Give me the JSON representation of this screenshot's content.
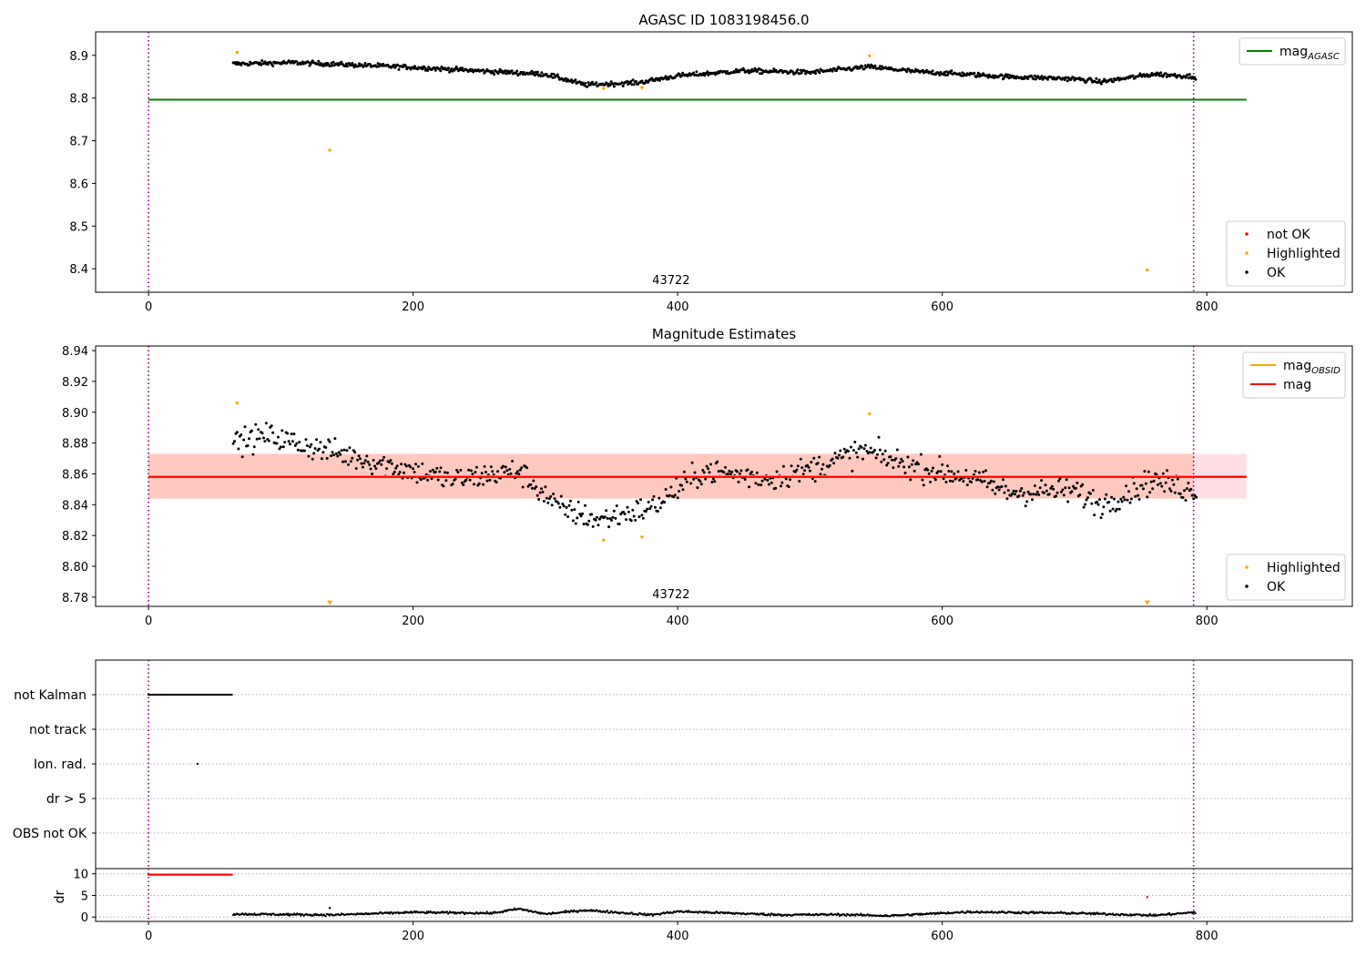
{
  "chart_data": [
    {
      "type": "scatter",
      "title": "AGASC ID 1083198456.0",
      "xlabel": "",
      "ylabel": "",
      "xlim": [
        -40,
        910
      ],
      "ylim": [
        8.345,
        8.955
      ],
      "xticks": [
        0,
        200,
        400,
        600,
        800
      ],
      "yticks": [
        8.4,
        8.5,
        8.6,
        8.7,
        8.8,
        8.9
      ],
      "ytick_decimals": 1,
      "vlines": [
        0,
        790
      ],
      "vline_color": "#800080",
      "annotation": {
        "text": "43722",
        "x": 395
      },
      "hlines": [
        {
          "name": "magAGASC",
          "y": 8.796,
          "x0": 0,
          "x1": 830,
          "color": "#008000"
        }
      ],
      "series": [
        {
          "name": "OK",
          "color": "#000000",
          "trend": "top_ok",
          "x_range": [
            64,
            792
          ]
        },
        {
          "name": "Highlighted",
          "color": "#ffa500",
          "points": [
            [
              67,
              8.907
            ],
            [
              137,
              8.678
            ],
            [
              344,
              8.823
            ],
            [
              373,
              8.825
            ],
            [
              545,
              8.899
            ],
            [
              755,
              8.397
            ]
          ]
        }
      ],
      "legends": [
        {
          "position": "upper-right",
          "items": [
            {
              "label": "mag",
              "sub": "AGASC",
              "kind": "line",
              "color": "#008000"
            }
          ]
        },
        {
          "position": "lower-right",
          "items": [
            {
              "label": "not OK",
              "kind": "dot",
              "color": "#ff0000"
            },
            {
              "label": "Highlighted",
              "kind": "dot",
              "color": "#ffa500"
            },
            {
              "label": "OK",
              "kind": "dot",
              "color": "#000000"
            }
          ]
        }
      ]
    },
    {
      "type": "scatter",
      "title": "Magnitude Estimates",
      "xlabel": "",
      "ylabel": "",
      "xlim": [
        -40,
        910
      ],
      "ylim": [
        8.774,
        8.943
      ],
      "xticks": [
        0,
        200,
        400,
        600,
        800
      ],
      "yticks": [
        8.78,
        8.8,
        8.82,
        8.84,
        8.86,
        8.88,
        8.9,
        8.92,
        8.94
      ],
      "ytick_decimals": 2,
      "vlines": [
        0,
        790
      ],
      "vline_color": "#800080",
      "annotation": {
        "text": "43722",
        "x": 395
      },
      "band": {
        "x0": 0,
        "x1": 830,
        "y0": 8.844,
        "y1": 8.873,
        "color": "#ffc0cb"
      },
      "band_obsid": {
        "x0": 0,
        "x1": 830,
        "y0": 8.844,
        "y1": 8.873,
        "color": "#ffa07a"
      },
      "hlines": [
        {
          "name": "magOBSID",
          "y": 8.8585,
          "x0": 0,
          "x1": 830,
          "color": "#ffa500"
        },
        {
          "name": "mag",
          "y": 8.858,
          "x0": 0,
          "x1": 830,
          "color": "#ff0000"
        }
      ],
      "series": [
        {
          "name": "OK",
          "color": "#000000",
          "trend": "mid_ok",
          "x_range": [
            64,
            792
          ]
        },
        {
          "name": "Highlighted",
          "color": "#ffa500",
          "points": [
            [
              67,
              8.906
            ],
            [
              344,
              8.817
            ],
            [
              373,
              8.819
            ],
            [
              545,
              8.899
            ]
          ]
        },
        {
          "name": "Highlighted (off scale)",
          "color": "#ffa500",
          "marker": "triangle-down",
          "points": [
            [
              137,
              8.776
            ],
            [
              755,
              8.776
            ]
          ]
        }
      ],
      "legends": [
        {
          "position": "upper-right",
          "items": [
            {
              "label": "mag",
              "sub": "OBSID",
              "kind": "line",
              "color": "#ffa500"
            },
            {
              "label": "mag",
              "kind": "line",
              "color": "#ff0000"
            }
          ]
        },
        {
          "position": "lower-right",
          "items": [
            {
              "label": "Highlighted",
              "kind": "dot",
              "color": "#ffa500"
            },
            {
              "label": "OK",
              "kind": "dot",
              "color": "#000000"
            }
          ]
        }
      ]
    },
    {
      "type": "scatter",
      "title": "",
      "xlabel": "",
      "ylabel": "",
      "xlim": [
        -40,
        910
      ],
      "categories": [
        "not Kalman",
        "not track",
        "Ion. rad.",
        "dr > 5",
        "OBS not OK"
      ],
      "vlines": [
        0,
        790
      ],
      "vline_color": "#800080",
      "flags": [
        {
          "category": "not Kalman",
          "x_range": [
            0,
            63
          ],
          "color": "#000000"
        },
        {
          "category": "Ion. rad.",
          "points": [
            37
          ],
          "color": "#000000"
        }
      ]
    },
    {
      "type": "scatter",
      "title": "",
      "xlabel": "",
      "ylabel": "dr",
      "xlim": [
        -40,
        910
      ],
      "ylim": [
        -1.0,
        11.2
      ],
      "xticks": [
        0,
        200,
        400,
        600,
        800
      ],
      "yticks": [
        0,
        5,
        10
      ],
      "vlines": [
        0,
        790
      ],
      "vline_color": "#800080",
      "series": [
        {
          "name": "dr not OK (clipped)",
          "color": "#ff0000",
          "x_range": [
            0,
            63
          ],
          "y": 9.8
        },
        {
          "name": "dr OK",
          "color": "#000000",
          "trend": "dr",
          "x_range": [
            64,
            792
          ]
        },
        {
          "name": "dr not OK",
          "color": "#ff0000",
          "points": [
            [
              755,
              4.6
            ]
          ]
        },
        {
          "name": "dr highlighted",
          "color": "#000000",
          "points": [
            [
              137,
              2.1
            ]
          ]
        }
      ]
    }
  ]
}
